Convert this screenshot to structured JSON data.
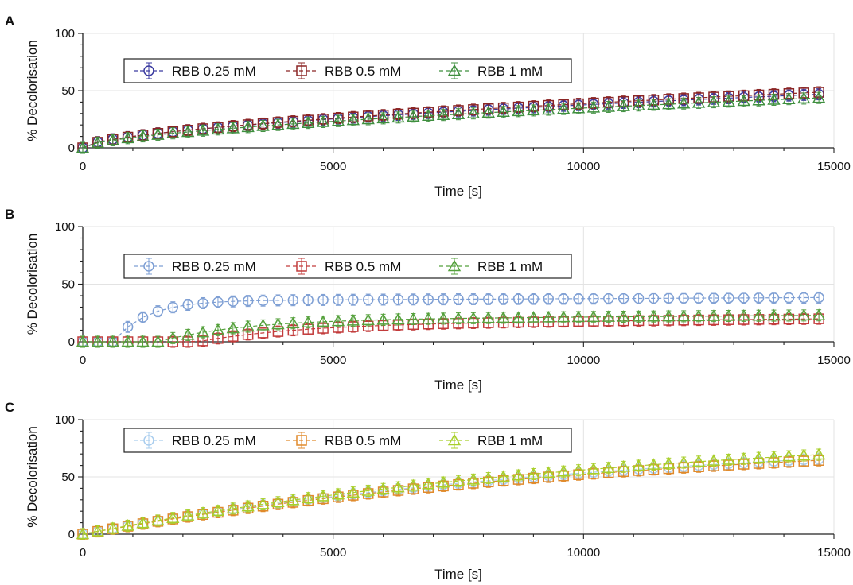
{
  "chart_data": [
    {
      "panel": "A",
      "type": "scatter",
      "xlabel": "Time [s]",
      "ylabel": "% Decolorisation",
      "xlim": [
        0,
        15000
      ],
      "ylim": [
        0,
        100
      ],
      "xticks": [
        "0",
        "5000",
        "10000",
        "15000"
      ],
      "yticks": [
        "0",
        "50",
        "100"
      ],
      "grid": true,
      "legend_position": "top-left",
      "x_sampling": {
        "start": 0,
        "step": 300,
        "count": 50
      },
      "series": [
        {
          "name": "RBB 0.25 mM",
          "marker": "circle",
          "color": "#3a3aa0",
          "curve": {
            "type": "power",
            "a": 0.1935,
            "b": 0.572
          }
        },
        {
          "name": "RBB 0.5 mM",
          "marker": "square",
          "color": "#8b2525",
          "curve": {
            "type": "power",
            "a": 0.1706,
            "b": 0.589
          }
        },
        {
          "name": "RBB 1 mM",
          "marker": "triangle",
          "color": "#3f8f3f",
          "curve": {
            "type": "power",
            "a": 0.1547,
            "b": 0.588
          }
        }
      ]
    },
    {
      "panel": "B",
      "type": "scatter",
      "xlabel": "Time [s]",
      "ylabel": "% Decolorisation",
      "xlim": [
        0,
        15000
      ],
      "ylim": [
        0,
        100
      ],
      "xticks": [
        "0",
        "5000",
        "10000",
        "15000"
      ],
      "yticks": [
        "0",
        "50",
        "100"
      ],
      "grid": true,
      "legend_position": "top-left",
      "x_sampling": {
        "start": 0,
        "step": 300,
        "count": 50
      },
      "series": [
        {
          "name": "RBB 0.25 mM",
          "marker": "circle",
          "color": "#7e9fd4",
          "curve": {
            "type": "lag",
            "lag": 600,
            "plateau": 35.5,
            "rate": 0.0015,
            "late_slope": 0.0002
          }
        },
        {
          "name": "RBB 0.5 mM",
          "marker": "square",
          "color": "#c23b3b",
          "curve": {
            "type": "lag",
            "lag": 2300,
            "plateau": 15,
            "rate": 0.0005,
            "late_slope": 0.0004
          }
        },
        {
          "name": "RBB 1 mM",
          "marker": "triangle",
          "color": "#55a13c",
          "curve": {
            "type": "lag",
            "lag": 1500,
            "plateau": 19,
            "rate": 0.0006,
            "late_slope": 0.0003
          }
        }
      ]
    },
    {
      "panel": "C",
      "type": "scatter",
      "xlabel": "Time [s]",
      "ylabel": "% Decolorisation",
      "xlim": [
        0,
        15000
      ],
      "ylim": [
        0,
        100
      ],
      "xticks": [
        "0",
        "5000",
        "10000",
        "15000"
      ],
      "yticks": [
        "0",
        "50",
        "100"
      ],
      "grid": true,
      "legend_position": "top-left",
      "x_sampling": {
        "start": 0,
        "step": 300,
        "count": 50
      },
      "series": [
        {
          "name": "RBB 0.25 mM",
          "marker": "circle",
          "color": "#a9cdee",
          "curve": {
            "type": "exp",
            "max": 88,
            "tau": 10700
          }
        },
        {
          "name": "RBB 0.5 mM",
          "marker": "square",
          "color": "#e08a2b",
          "curve": {
            "type": "exp",
            "max": 87,
            "tau": 10900
          }
        },
        {
          "name": "RBB 1 mM",
          "marker": "triangle",
          "color": "#a8cf2a",
          "curve": {
            "type": "exp",
            "max": 95,
            "tau": 11200
          }
        }
      ]
    }
  ]
}
